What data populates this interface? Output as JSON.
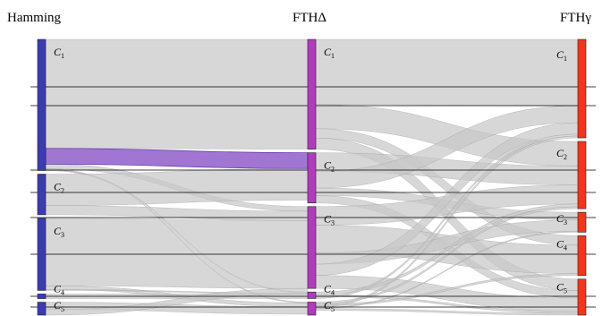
{
  "columns": [
    {
      "title": "Hamming",
      "color": "#3b3bb3",
      "nodes": [
        {
          "label": "C",
          "sub": "1",
          "size": 142
        },
        {
          "label": "C",
          "sub": "2",
          "size": 44
        },
        {
          "label": "C",
          "sub": "3",
          "size": 78
        },
        {
          "label": "C",
          "sub": "4",
          "size": 5
        },
        {
          "label": "C",
          "sub": "5",
          "size": 14
        }
      ]
    },
    {
      "title": "FTHΔ",
      "color": "#b23bbd",
      "nodes": [
        {
          "label": "C",
          "sub": "1",
          "size": 118
        },
        {
          "label": "C",
          "sub": "2",
          "size": 54
        },
        {
          "label": "C",
          "sub": "3",
          "size": 88
        },
        {
          "label": "C",
          "sub": "4",
          "size": 7
        },
        {
          "label": "C",
          "sub": "5",
          "size": 14
        }
      ]
    },
    {
      "title": "FTHγ",
      "color": "#f5341a",
      "nodes": [
        {
          "label": "C",
          "sub": "1",
          "size": 104
        },
        {
          "label": "C",
          "sub": "2",
          "size": 71
        },
        {
          "label": "C",
          "sub": "3",
          "size": 21
        },
        {
          "label": "C",
          "sub": "4",
          "size": 42
        },
        {
          "label": "C",
          "sub": "5",
          "size": 38
        }
      ]
    }
  ],
  "highlight_color": "#9b6fd0",
  "flow_color": "#c8c8c8",
  "flows_12": [
    {
      "s": 0,
      "t": 0,
      "v": 118
    },
    {
      "s": 0,
      "t": 1,
      "v": 17,
      "highlight": true
    },
    {
      "s": 0,
      "t": 2,
      "v": 5
    },
    {
      "s": 0,
      "t": 4,
      "v": 1
    },
    {
      "s": 0,
      "t": 3,
      "v": 1
    },
    {
      "s": 1,
      "t": 1,
      "v": 34
    },
    {
      "s": 1,
      "t": 2,
      "v": 10
    },
    {
      "s": 2,
      "t": 2,
      "v": 73
    },
    {
      "s": 2,
      "t": 4,
      "v": 4
    },
    {
      "s": 2,
      "t": 3,
      "v": 1
    },
    {
      "s": 3,
      "t": 3,
      "v": 5
    },
    {
      "s": 4,
      "t": 4,
      "v": 8
    },
    {
      "s": 4,
      "t": 2,
      "v": 6
    }
  ],
  "flows_23": [
    {
      "s": 0,
      "t": 0,
      "v": 70
    },
    {
      "s": 0,
      "t": 1,
      "v": 26
    },
    {
      "s": 0,
      "t": 3,
      "v": 10
    },
    {
      "s": 0,
      "t": 4,
      "v": 12
    },
    {
      "s": 1,
      "t": 1,
      "v": 20
    },
    {
      "s": 1,
      "t": 0,
      "v": 18
    },
    {
      "s": 1,
      "t": 2,
      "v": 8
    },
    {
      "s": 1,
      "t": 4,
      "v": 8
    },
    {
      "s": 2,
      "t": 1,
      "v": 20
    },
    {
      "s": 2,
      "t": 3,
      "v": 30
    },
    {
      "s": 2,
      "t": 2,
      "v": 12
    },
    {
      "s": 2,
      "t": 0,
      "v": 12
    },
    {
      "s": 2,
      "t": 4,
      "v": 14
    },
    {
      "s": 3,
      "t": 1,
      "v": 3
    },
    {
      "s": 3,
      "t": 4,
      "v": 2
    },
    {
      "s": 3,
      "t": 0,
      "v": 2
    },
    {
      "s": 4,
      "t": 1,
      "v": 2
    },
    {
      "s": 4,
      "t": 3,
      "v": 2
    },
    {
      "s": 4,
      "t": 0,
      "v": 2
    },
    {
      "s": 4,
      "t": 2,
      "v": 1
    },
    {
      "s": 4,
      "t": 4,
      "v": 2
    }
  ]
}
